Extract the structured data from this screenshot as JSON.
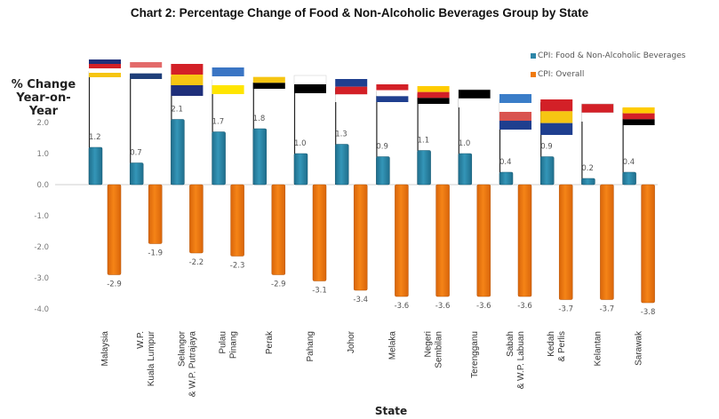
{
  "chart_data": {
    "type": "bar",
    "title": "Chart 2: Percentage Change of Food & Non-Alcoholic Beverages Group by State",
    "xlabel": "State",
    "ylabel": "% Change Year-on-Year",
    "ylabel_lines": [
      "% Change",
      "Year-on-Year"
    ],
    "ylim": [
      -4.0,
      2.0
    ],
    "yticks": [
      "2.0",
      "1.0",
      "0.0",
      "-1.0",
      "-2.0",
      "-3.0",
      "-4.0"
    ],
    "ytick_values": [
      2.0,
      1.0,
      0.0,
      -1.0,
      -2.0,
      -3.0,
      -4.0
    ],
    "grid": false,
    "legend_position": "top-right",
    "categories": [
      [
        "Malaysia"
      ],
      [
        "W.P.",
        "Kuala Lumpur"
      ],
      [
        "Selangor",
        "& W.P. Putrajaya"
      ],
      [
        "Pulau",
        "Pinang"
      ],
      [
        "Perak"
      ],
      [
        "Pahang"
      ],
      [
        "Johor"
      ],
      [
        "Melaka"
      ],
      [
        "Negeri",
        "Sembilan"
      ],
      [
        "Terengganu"
      ],
      [
        "Sabah",
        "& W.P. Labuan"
      ],
      [
        "Kedah",
        "& Perlis"
      ],
      [
        "Kelantan"
      ],
      [
        "Sarawak"
      ]
    ],
    "series": [
      {
        "name": "CPI: Food & Non-Alcoholic Beverages",
        "color": "#2E86A8",
        "values": [
          1.2,
          0.7,
          2.1,
          1.7,
          1.8,
          1.0,
          1.3,
          0.9,
          1.1,
          1.0,
          0.4,
          0.9,
          0.2,
          0.4
        ],
        "labels": [
          "1.2",
          "0.7",
          "2.1",
          "1.7",
          "1.8",
          "1.0",
          "1.3",
          "0.9",
          "1.1",
          "1.0",
          "0.4",
          "0.9",
          "0.2",
          "0.4"
        ]
      },
      {
        "name": "CPI: Overall",
        "color": "#F07A10",
        "values": [
          -2.9,
          -1.9,
          -2.2,
          -2.3,
          -2.9,
          -3.1,
          -3.4,
          -3.6,
          -3.6,
          -3.6,
          -3.6,
          -3.7,
          -3.7,
          -3.8
        ],
        "labels": [
          "-2.9",
          "-1.9",
          "-2.2",
          "-2.3",
          "-2.9",
          "-3.1",
          "-3.4",
          "-3.6",
          "-3.6",
          "-3.6",
          "-3.6",
          "-3.7",
          "-3.7",
          "-3.8"
        ]
      }
    ],
    "annotations": [
      "State flags shown on flagpoles above each category"
    ]
  },
  "legend": {
    "items": [
      {
        "label": "CPI: Food & Non-Alcoholic Beverages",
        "color": "#2E86A8"
      },
      {
        "label": "CPI: Overall",
        "color": "#F07A10"
      }
    ]
  },
  "flags": [
    {
      "state": "Malaysia",
      "icon": "malaysia-flag-icon",
      "colors": [
        "#1F2F7A",
        "#D32027",
        "#FFFFFF",
        "#F6C512"
      ]
    },
    {
      "state": "W.P. Kuala Lumpur",
      "icon": "kuala-lumpur-flag-icon",
      "colors": [
        "#E36A6A",
        "#FFFFFF",
        "#1F3F7A"
      ]
    },
    {
      "state": "Selangor & W.P. Putrajaya",
      "icon": "selangor-putrajaya-flag-icon",
      "colors": [
        "#D32027",
        "#F6C512",
        "#1F2F7A"
      ]
    },
    {
      "state": "Pulau Pinang",
      "icon": "penang-flag-icon",
      "colors": [
        "#3A75C4",
        "#FFFFFF",
        "#FFE500"
      ]
    },
    {
      "state": "Perak",
      "icon": "perak-flag-icon",
      "colors": [
        "#FFFFFF",
        "#F6C512",
        "#000000"
      ]
    },
    {
      "state": "Pahang",
      "icon": "pahang-flag-icon",
      "colors": [
        "#FFFFFF",
        "#000000"
      ]
    },
    {
      "state": "Johor",
      "icon": "johor-flag-icon",
      "colors": [
        "#1F3F8F",
        "#D32027",
        "#FFFFFF"
      ]
    },
    {
      "state": "Melaka",
      "icon": "melaka-flag-icon",
      "colors": [
        "#D32027",
        "#FFFFFF",
        "#1F3F8F"
      ]
    },
    {
      "state": "Negeri Sembilan",
      "icon": "negeri-sembilan-flag-icon",
      "colors": [
        "#FFCC00",
        "#D32027",
        "#000000"
      ]
    },
    {
      "state": "Terengganu",
      "icon": "terengganu-flag-icon",
      "colors": [
        "#000000",
        "#FFFFFF"
      ]
    },
    {
      "state": "Sabah & W.P. Labuan",
      "icon": "sabah-labuan-flag-icon",
      "colors": [
        "#3A7DC8",
        "#FFFFFF",
        "#D9534F",
        "#1F3F8F"
      ]
    },
    {
      "state": "Kedah & Perlis",
      "icon": "kedah-perlis-flag-icon",
      "colors": [
        "#D32027",
        "#F6C512",
        "#1F3F8F"
      ]
    },
    {
      "state": "Kelantan",
      "icon": "kelantan-flag-icon",
      "colors": [
        "#D32027",
        "#FFFFFF"
      ]
    },
    {
      "state": "Sarawak",
      "icon": "sarawak-flag-icon",
      "colors": [
        "#FFCC00",
        "#D32027",
        "#000000"
      ]
    }
  ]
}
